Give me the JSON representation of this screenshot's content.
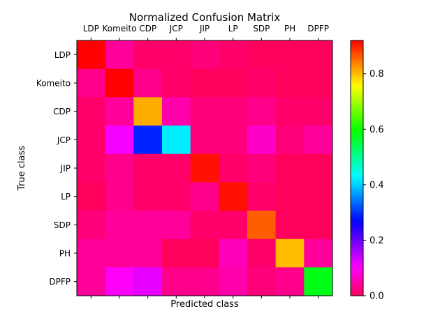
{
  "chart_data": {
    "type": "heatmap",
    "title": "Normalized Confusion Matrix",
    "xlabel": "Predicted class",
    "ylabel": "True class",
    "x_categories": [
      "LDP",
      "Komeito",
      "CDP",
      "JCP",
      "JIP",
      "LP",
      "SDP",
      "PH",
      "DPFP"
    ],
    "y_categories": [
      "LDP",
      "Komeito",
      "CDP",
      "JCP",
      "JIP",
      "LP",
      "SDP",
      "PH",
      "DPFP"
    ],
    "matrix": [
      [
        0.92,
        0.04,
        0.01,
        0.01,
        0.02,
        0.01,
        0.0,
        0.0,
        0.0
      ],
      [
        0.03,
        0.92,
        0.03,
        0.01,
        0.0,
        0.0,
        0.01,
        0.0,
        0.0
      ],
      [
        0.01,
        0.04,
        0.81,
        0.05,
        0.02,
        0.02,
        0.03,
        0.01,
        0.01
      ],
      [
        0.01,
        0.11,
        0.29,
        0.42,
        0.02,
        0.02,
        0.07,
        0.02,
        0.04
      ],
      [
        0.01,
        0.03,
        0.01,
        0.01,
        0.91,
        0.01,
        0.02,
        0.0,
        0.0
      ],
      [
        0.0,
        0.03,
        0.01,
        0.01,
        0.03,
        0.91,
        0.01,
        0.0,
        0.0
      ],
      [
        0.02,
        0.04,
        0.04,
        0.04,
        0.01,
        0.01,
        0.86,
        0.0,
        0.0
      ],
      [
        0.04,
        0.04,
        0.04,
        0.0,
        0.0,
        0.06,
        0.01,
        0.8,
        0.04
      ],
      [
        0.04,
        0.1,
        0.12,
        0.03,
        0.03,
        0.05,
        0.02,
        0.03,
        0.58
      ]
    ],
    "colormap": "hsv",
    "colorbar_range": [
      0.0,
      0.92
    ],
    "colorbar_ticks": [
      "0.0",
      "0.2",
      "0.4",
      "0.6",
      "0.8"
    ],
    "grid": false
  }
}
